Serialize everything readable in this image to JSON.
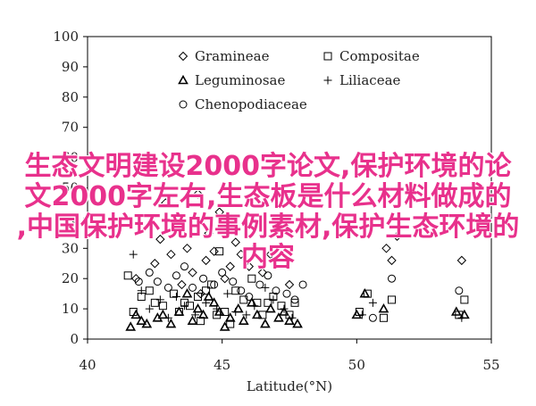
{
  "chart_data": {
    "type": "scatter",
    "xlabel": "Latitude(°N)",
    "ylabel": "",
    "xlim": [
      40,
      55
    ],
    "ylim": [
      0,
      100
    ],
    "xticks": [
      40,
      45,
      50,
      55
    ],
    "yticks": [
      0,
      10,
      20,
      30,
      40,
      50,
      60,
      70,
      80,
      90,
      100
    ],
    "legend_position": "top-center",
    "series": [
      {
        "name": "Gramineae",
        "marker": "diamond",
        "points": [
          [
            41.8,
            20
          ],
          [
            42.2,
            60
          ],
          [
            42.5,
            25
          ],
          [
            42.7,
            33
          ],
          [
            42.9,
            45
          ],
          [
            43.1,
            28
          ],
          [
            43.3,
            38
          ],
          [
            43.5,
            18
          ],
          [
            43.7,
            30
          ],
          [
            43.9,
            22
          ],
          [
            44.1,
            48
          ],
          [
            44.2,
            15
          ],
          [
            44.4,
            26
          ],
          [
            44.5,
            35
          ],
          [
            44.7,
            29
          ],
          [
            44.9,
            42
          ],
          [
            45.1,
            20
          ],
          [
            45.3,
            24
          ],
          [
            45.5,
            32
          ],
          [
            45.7,
            28
          ],
          [
            46.0,
            24
          ],
          [
            46.2,
            30
          ],
          [
            46.5,
            22
          ],
          [
            46.8,
            28
          ],
          [
            47.2,
            27
          ],
          [
            47.5,
            18
          ],
          [
            51.1,
            30
          ],
          [
            51.3,
            26
          ],
          [
            51.5,
            34
          ],
          [
            53.9,
            26
          ]
        ]
      },
      {
        "name": "Compositae",
        "marker": "square",
        "points": [
          [
            41.5,
            21
          ],
          [
            41.7,
            9
          ],
          [
            42.0,
            14
          ],
          [
            42.3,
            16
          ],
          [
            42.5,
            12
          ],
          [
            42.8,
            11
          ],
          [
            43.2,
            15
          ],
          [
            43.4,
            9
          ],
          [
            43.6,
            12
          ],
          [
            43.8,
            11
          ],
          [
            44.1,
            14
          ],
          [
            44.2,
            6
          ],
          [
            44.4,
            16
          ],
          [
            44.6,
            18
          ],
          [
            44.8,
            8
          ],
          [
            44.9,
            29
          ],
          [
            45.1,
            9
          ],
          [
            45.3,
            5
          ],
          [
            45.5,
            16
          ],
          [
            45.8,
            13
          ],
          [
            46.1,
            20
          ],
          [
            46.3,
            12
          ],
          [
            46.5,
            8
          ],
          [
            46.7,
            12
          ],
          [
            46.9,
            14
          ],
          [
            47.2,
            11
          ],
          [
            47.5,
            8
          ],
          [
            47.7,
            12
          ],
          [
            50.1,
            9
          ],
          [
            50.4,
            15
          ],
          [
            51.0,
            7
          ],
          [
            51.3,
            13
          ],
          [
            53.8,
            8
          ],
          [
            54.0,
            13
          ]
        ]
      },
      {
        "name": "Leguminosae",
        "marker": "triangle",
        "points": [
          [
            41.6,
            4
          ],
          [
            41.8,
            8
          ],
          [
            42.0,
            6
          ],
          [
            42.2,
            5
          ],
          [
            42.6,
            7
          ],
          [
            42.8,
            8
          ],
          [
            43.1,
            5
          ],
          [
            43.4,
            9
          ],
          [
            43.7,
            15
          ],
          [
            43.9,
            6
          ],
          [
            44.1,
            10
          ],
          [
            44.3,
            8
          ],
          [
            44.5,
            14
          ],
          [
            44.7,
            12
          ],
          [
            44.9,
            9
          ],
          [
            45.1,
            4
          ],
          [
            45.3,
            7
          ],
          [
            45.6,
            10
          ],
          [
            45.8,
            6
          ],
          [
            46.1,
            12
          ],
          [
            46.3,
            8
          ],
          [
            46.6,
            5
          ],
          [
            46.8,
            10
          ],
          [
            47.1,
            7
          ],
          [
            47.3,
            9
          ],
          [
            47.5,
            6
          ],
          [
            47.8,
            5
          ],
          [
            50.0,
            8
          ],
          [
            50.3,
            15
          ],
          [
            51.0,
            10
          ],
          [
            53.7,
            9
          ],
          [
            54.0,
            8
          ]
        ]
      },
      {
        "name": "Liliaceae",
        "marker": "plus",
        "points": [
          [
            41.7,
            28
          ],
          [
            42.0,
            16
          ],
          [
            42.3,
            10
          ],
          [
            42.7,
            13
          ],
          [
            43.0,
            7
          ],
          [
            43.3,
            14
          ],
          [
            43.6,
            11
          ],
          [
            44.0,
            8
          ],
          [
            44.4,
            12
          ],
          [
            44.8,
            10
          ],
          [
            45.2,
            15
          ],
          [
            45.5,
            9
          ],
          [
            45.9,
            8
          ],
          [
            46.2,
            11
          ],
          [
            46.6,
            17
          ],
          [
            46.9,
            13
          ],
          [
            47.3,
            10
          ],
          [
            47.6,
            7
          ],
          [
            50.2,
            8
          ],
          [
            50.6,
            12
          ],
          [
            53.9,
            7
          ]
        ]
      },
      {
        "name": "Chenopodiaceae",
        "marker": "circle",
        "points": [
          [
            41.9,
            19
          ],
          [
            42.3,
            22
          ],
          [
            42.6,
            19
          ],
          [
            43.0,
            17
          ],
          [
            43.3,
            21
          ],
          [
            43.6,
            24
          ],
          [
            43.9,
            17
          ],
          [
            44.3,
            20
          ],
          [
            44.7,
            18
          ],
          [
            45.0,
            22
          ],
          [
            45.4,
            19
          ],
          [
            45.7,
            16
          ],
          [
            46.0,
            14
          ],
          [
            46.4,
            18
          ],
          [
            46.7,
            21
          ],
          [
            47.0,
            16
          ],
          [
            47.4,
            15
          ],
          [
            47.7,
            13
          ],
          [
            48.0,
            18
          ],
          [
            50.6,
            7
          ],
          [
            51.3,
            20
          ],
          [
            53.8,
            16
          ]
        ]
      }
    ]
  },
  "overlay": {
    "line1": "生态文明建设2000字论文,保护环境的论",
    "line2": "文2000字左右,生态板是什么材料做成的",
    "line3": ",中国保护环境的事例素材,保护生态环境的",
    "line4": "内容"
  }
}
